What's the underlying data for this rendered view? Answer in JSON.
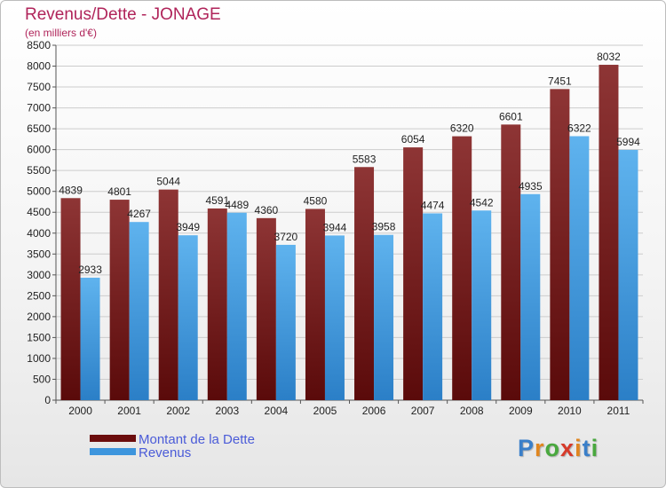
{
  "title": "Revenus/Dette - JONAGE",
  "subtitle": "(en milliers d'€)",
  "colors": {
    "dette_top": "#8e3535",
    "dette_bottom": "#5a0a0a",
    "revenus_top": "#5fb3ee",
    "revenus_bottom": "#2b7fc7",
    "axis_text": "#222222",
    "grid": "#cccccc"
  },
  "chart_data": {
    "type": "bar",
    "title": "Revenus/Dette - JONAGE",
    "subtitle": "(en milliers d'€)",
    "categories": [
      "2000",
      "2001",
      "2002",
      "2003",
      "2004",
      "2005",
      "2006",
      "2007",
      "2008",
      "2009",
      "2010",
      "2011"
    ],
    "series": [
      {
        "name": "Montant de la Dette",
        "values": [
          4839,
          4801,
          5044,
          4591,
          4360,
          4580,
          5583,
          6054,
          6320,
          6601,
          7451,
          8032
        ]
      },
      {
        "name": "Revenus",
        "values": [
          2933,
          4267,
          3949,
          4489,
          3720,
          3944,
          3958,
          4474,
          4542,
          4935,
          6322,
          5994
        ]
      }
    ],
    "ylim": [
      0,
      8500
    ],
    "ytick_step": 500,
    "grid": true,
    "legend_position": "bottom-left"
  },
  "legend": [
    {
      "label": "Montant de la Dette",
      "color": "#6b0d0d"
    },
    {
      "label": "Revenus",
      "color": "#3d95dd"
    }
  ],
  "logo": {
    "letters": [
      "P",
      "r",
      "o",
      "x",
      "i",
      "t",
      "i"
    ],
    "colors": [
      "#3a7fc9",
      "#e0861f",
      "#49a83e",
      "#d63a2a",
      "#e0861f",
      "#3a7fc9",
      "#49a83e"
    ]
  }
}
